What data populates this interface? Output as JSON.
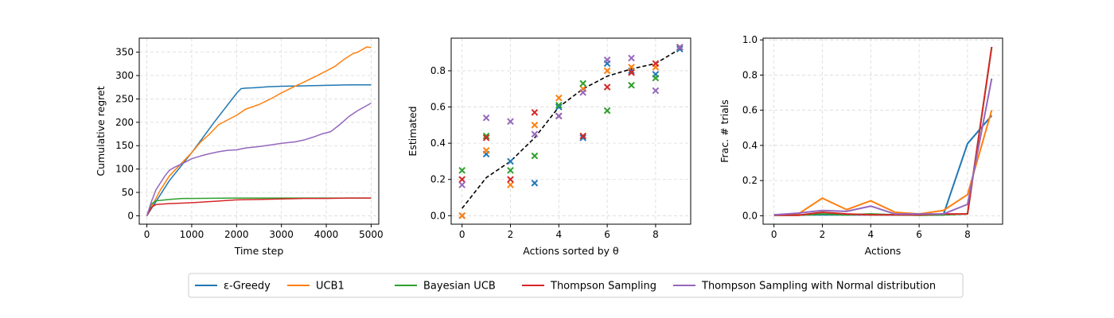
{
  "colors": {
    "eps_greedy": "#1f77b4",
    "ucb1": "#ff7f0e",
    "bayes_ucb": "#2ca02c",
    "thompson": "#d62728",
    "thompson_normal": "#9467bd",
    "true_theta": "#000000"
  },
  "legend": [
    {
      "name": "ε-Greedy",
      "color": "#1f77b4"
    },
    {
      "name": "UCB1",
      "color": "#ff7f0e"
    },
    {
      "name": "Bayesian UCB",
      "color": "#2ca02c"
    },
    {
      "name": "Thompson Sampling",
      "color": "#d62728"
    },
    {
      "name": "Thompson Sampling with Normal distribution",
      "color": "#9467bd"
    }
  ],
  "chart_data": [
    {
      "type": "line",
      "xlabel": "Time step",
      "ylabel": "Cumulative regret",
      "xlim": [
        -170,
        5170
      ],
      "ylim": [
        -18,
        380
      ],
      "xticks": [
        0,
        1000,
        2000,
        3000,
        4000,
        5000
      ],
      "yticks": [
        0,
        50,
        100,
        150,
        200,
        250,
        300,
        350
      ],
      "grid": true,
      "series": [
        {
          "name": "ε-Greedy",
          "color": "#1f77b4",
          "x": [
            0,
            100,
            500,
            1000,
            1500,
            2000,
            2100,
            2200,
            2400,
            2700,
            3000,
            3500,
            4000,
            4500,
            5000
          ],
          "y": [
            0,
            15,
            75,
            135,
            200,
            262,
            272,
            273,
            274,
            276,
            277,
            278,
            279,
            280,
            280
          ]
        },
        {
          "name": "UCB1",
          "color": "#ff7f0e",
          "x": [
            0,
            100,
            300,
            500,
            800,
            1000,
            1200,
            1400,
            1600,
            1800,
            2000,
            2200,
            2500,
            2800,
            3000,
            3300,
            3500,
            3800,
            4000,
            4200,
            4400,
            4600,
            4700,
            4900,
            5000
          ],
          "y": [
            0,
            18,
            55,
            85,
            115,
            135,
            158,
            175,
            195,
            205,
            215,
            228,
            238,
            252,
            263,
            277,
            286,
            300,
            310,
            320,
            335,
            347,
            350,
            361,
            360
          ]
        },
        {
          "name": "Bayesian UCB",
          "color": "#2ca02c",
          "x": [
            0,
            100,
            200,
            500,
            800,
            1000,
            2000,
            3000,
            4000,
            5000
          ],
          "y": [
            0,
            25,
            32,
            35,
            37,
            37,
            38,
            38,
            38,
            38
          ]
        },
        {
          "name": "Thompson Sampling",
          "color": "#d62728",
          "x": [
            0,
            100,
            200,
            500,
            1000,
            1500,
            2000,
            2500,
            3000,
            3500,
            4000,
            4500,
            5000
          ],
          "y": [
            0,
            18,
            24,
            26,
            28,
            31,
            34,
            35,
            36,
            37,
            37,
            38,
            38
          ]
        },
        {
          "name": "Thompson Sampling with Normal distribution",
          "color": "#9467bd",
          "x": [
            0,
            100,
            200,
            300,
            400,
            500,
            600,
            800,
            1000,
            1200,
            1400,
            1600,
            1800,
            2000,
            2200,
            2500,
            2800,
            3000,
            3300,
            3500,
            3700,
            3900,
            4100,
            4300,
            4500,
            4700,
            5000
          ],
          "y": [
            0,
            30,
            55,
            70,
            85,
            97,
            103,
            112,
            122,
            128,
            133,
            137,
            140,
            141,
            145,
            148,
            152,
            155,
            158,
            162,
            168,
            175,
            180,
            195,
            212,
            225,
            241
          ]
        }
      ]
    },
    {
      "type": "scatter",
      "xlabel": "Actions sorted by θ",
      "ylabel": "Estimated",
      "xlim": [
        -0.45,
        9.45
      ],
      "ylim": [
        -0.047,
        0.98
      ],
      "xticks": [
        0,
        2,
        4,
        6,
        8
      ],
      "yticks": [
        0.0,
        0.2,
        0.4,
        0.6,
        0.8
      ],
      "grid": true,
      "true_theta": {
        "color": "#000000",
        "style": "dashed",
        "x": [
          0,
          1,
          2,
          3,
          4,
          5,
          6,
          7,
          8,
          9
        ],
        "y": [
          0.04,
          0.21,
          0.3,
          0.43,
          0.6,
          0.7,
          0.77,
          0.81,
          0.84,
          0.92
        ]
      },
      "series": [
        {
          "name": "ε-Greedy",
          "color": "#1f77b4",
          "marker": "x",
          "x": [
            0,
            1,
            2,
            3,
            4,
            5,
            6,
            7,
            8,
            9
          ],
          "y": [
            0.0,
            0.34,
            0.3,
            0.18,
            0.6,
            0.43,
            0.84,
            0.8,
            0.78,
            0.92
          ]
        },
        {
          "name": "UCB1",
          "color": "#ff7f0e",
          "marker": "x",
          "x": [
            0,
            1,
            2,
            3,
            4,
            5,
            6,
            7,
            8,
            9
          ],
          "y": [
            0.0,
            0.36,
            0.17,
            0.5,
            0.65,
            0.7,
            0.8,
            0.82,
            0.82,
            0.93
          ]
        },
        {
          "name": "Bayesian UCB",
          "color": "#2ca02c",
          "marker": "x",
          "x": [
            0,
            1,
            2,
            3,
            4,
            5,
            6,
            7,
            8,
            9
          ],
          "y": [
            0.25,
            0.44,
            0.25,
            0.33,
            0.61,
            0.73,
            0.58,
            0.72,
            0.76,
            0.93
          ]
        },
        {
          "name": "Thompson Sampling",
          "color": "#d62728",
          "marker": "x",
          "x": [
            0,
            1,
            2,
            3,
            4,
            5,
            6,
            7,
            8,
            9
          ],
          "y": [
            0.2,
            0.43,
            0.2,
            0.57,
            0.55,
            0.44,
            0.71,
            0.79,
            0.84,
            0.93
          ]
        },
        {
          "name": "Thompson Sampling with Normal distribution",
          "color": "#9467bd",
          "marker": "x",
          "x": [
            0,
            1,
            2,
            3,
            4,
            5,
            6,
            7,
            8,
            9
          ],
          "y": [
            0.17,
            0.54,
            0.52,
            0.45,
            0.55,
            0.68,
            0.86,
            0.87,
            0.69,
            0.93
          ]
        }
      ]
    },
    {
      "type": "line",
      "xlabel": "Actions",
      "ylabel": "Frac. # trials",
      "xlim": [
        -0.45,
        9.45
      ],
      "ylim": [
        -0.048,
        1.01
      ],
      "xticks": [
        0,
        2,
        4,
        6,
        8
      ],
      "yticks": [
        0.0,
        0.2,
        0.4,
        0.6,
        0.8,
        1.0
      ],
      "grid": true,
      "series": [
        {
          "name": "ε-Greedy",
          "color": "#1f77b4",
          "x": [
            0,
            1,
            2,
            3,
            4,
            5,
            6,
            7,
            8,
            9
          ],
          "y": [
            0.005,
            0.005,
            0.005,
            0.005,
            0.005,
            0.005,
            0.005,
            0.005,
            0.41,
            0.57
          ]
        },
        {
          "name": "UCB1",
          "color": "#ff7f0e",
          "x": [
            0,
            1,
            2,
            3,
            4,
            5,
            6,
            7,
            8,
            9
          ],
          "y": [
            0.005,
            0.01,
            0.1,
            0.035,
            0.085,
            0.02,
            0.01,
            0.03,
            0.12,
            0.6
          ]
        },
        {
          "name": "Bayesian UCB",
          "color": "#2ca02c",
          "x": [
            0,
            1,
            2,
            3,
            4,
            5,
            6,
            7,
            8,
            9
          ],
          "y": [
            0.003,
            0.003,
            0.01,
            0.005,
            0.01,
            0.005,
            0.003,
            0.005,
            0.01,
            0.96
          ]
        },
        {
          "name": "Thompson Sampling",
          "color": "#d62728",
          "x": [
            0,
            1,
            2,
            3,
            4,
            5,
            6,
            7,
            8,
            9
          ],
          "y": [
            0.003,
            0.003,
            0.02,
            0.01,
            0.005,
            0.005,
            0.005,
            0.01,
            0.01,
            0.96
          ]
        },
        {
          "name": "Thompson Sampling with Normal distribution",
          "color": "#9467bd",
          "x": [
            0,
            1,
            2,
            3,
            4,
            5,
            6,
            7,
            8,
            9
          ],
          "y": [
            0.005,
            0.015,
            0.03,
            0.025,
            0.055,
            0.01,
            0.01,
            0.01,
            0.065,
            0.78
          ]
        }
      ]
    }
  ]
}
